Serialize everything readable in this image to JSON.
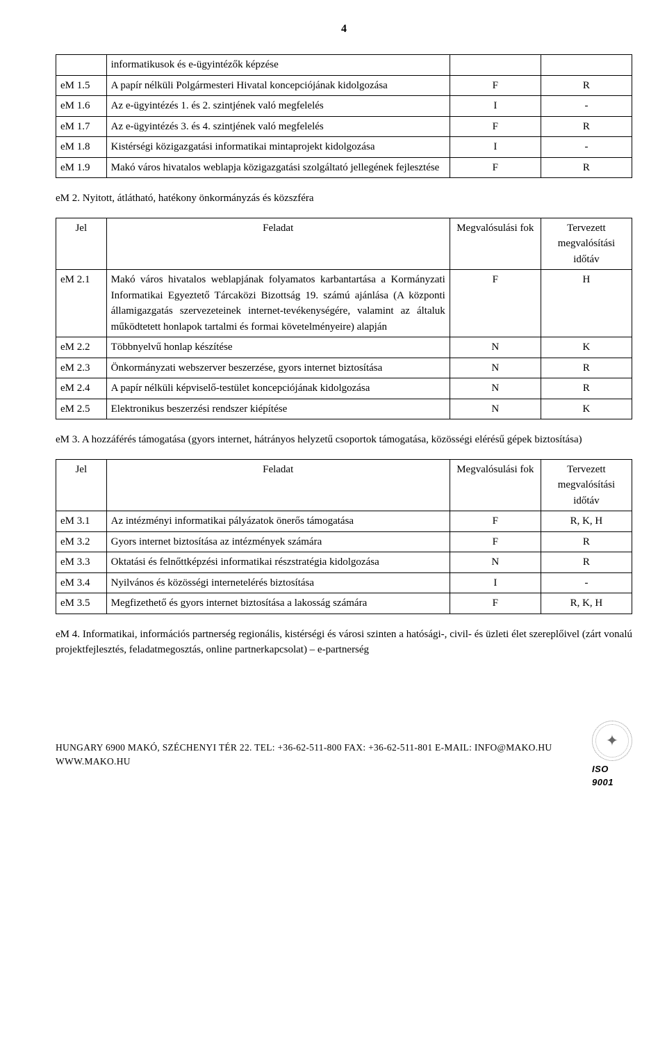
{
  "page_number": "4",
  "table1_rows": [
    {
      "id": "",
      "desc": "informatikusok és e-ügyintézők képzése",
      "c3": "",
      "c4": ""
    },
    {
      "id": "eM 1.5",
      "desc": "A papír nélküli Polgármesteri Hivatal koncepciójának kidolgozása",
      "c3": "F",
      "c4": "R"
    },
    {
      "id": "eM 1.6",
      "desc": "Az e-ügyintézés 1. és 2. szintjének való megfelelés",
      "c3": "I",
      "c4": "-"
    },
    {
      "id": "eM 1.7",
      "desc": "Az e-ügyintézés 3. és 4. szintjének való megfelelés",
      "c3": "F",
      "c4": "R"
    },
    {
      "id": "eM 1.8",
      "desc": "Kistérségi közigazgatási informatikai mintaprojekt kidolgozása",
      "c3": "I",
      "c4": "-"
    },
    {
      "id": "eM 1.9",
      "desc": "Makó város hivatalos weblapja közigazgatási szolgáltató jellegének fejlesztése",
      "c3": "F",
      "c4": "R"
    }
  ],
  "section2_title": "eM 2. Nyitott, átlátható, hatékony önkormányzás és közszféra",
  "table2_header": {
    "c1": "Jel",
    "c2": "Feladat",
    "c3": "Megvalósulási fok",
    "c4": "Tervezett megvalósítási időtáv"
  },
  "table2_rows": [
    {
      "id": "eM 2.1",
      "desc": "Makó város hivatalos weblapjának folyamatos karbantartása a Kormányzati Informatikai Egyeztető Tárcaközi Bizottság 19. számú ajánlása (A központi államigazgatás szervezeteinek internet-tevékenységére, valamint az általuk működtetett honlapok tartalmi és formai követelményeire) alapján",
      "c3": "F",
      "c4": "H"
    },
    {
      "id": "eM 2.2",
      "desc": "Többnyelvű honlap készítése",
      "c3": "N",
      "c4": "K"
    },
    {
      "id": "eM 2.3",
      "desc": "Önkormányzati webszerver beszerzése, gyors internet biztosítása",
      "c3": "N",
      "c4": "R"
    },
    {
      "id": "eM 2.4",
      "desc": "A papír nélküli képviselő-testület koncepciójának kidolgozása",
      "c3": "N",
      "c4": "R"
    },
    {
      "id": "eM 2.5",
      "desc": "Elektronikus beszerzési rendszer kiépítése",
      "c3": "N",
      "c4": "K"
    }
  ],
  "section3_title": "eM 3. A hozzáférés támogatása (gyors internet, hátrányos helyzetű csoportok támogatása, közösségi elérésű gépek biztosítása)",
  "table3_header": {
    "c1": "Jel",
    "c2": "Feladat",
    "c3": "Megvalósulási fok",
    "c4": "Tervezett megvalósítási időtáv"
  },
  "table3_rows": [
    {
      "id": "eM 3.1",
      "desc": "Az intézményi informatikai pályázatok önerős támogatása",
      "c3": "F",
      "c4": "R, K, H"
    },
    {
      "id": "eM 3.2",
      "desc": "Gyors internet biztosítása az intézmények számára",
      "c3": "F",
      "c4": "R"
    },
    {
      "id": "eM 3.3",
      "desc": "Oktatási és felnőttképzési informatikai részstratégia kidolgozása",
      "c3": "N",
      "c4": "R"
    },
    {
      "id": "eM 3.4",
      "desc": "Nyilvános és közösségi internetelérés biztosítása",
      "c3": "I",
      "c4": "-"
    },
    {
      "id": "eM 3.5",
      "desc": "Megfizethető és gyors internet biztosítása a lakosság számára",
      "c3": "F",
      "c4": "R, K, H"
    }
  ],
  "section4_title": "eM 4. Informatikai, információs partnerség regionális, kistérségi és városi szinten a hatósági-, civil- és üzleti élet szereplőivel (zárt vonalú projektfejlesztés, feladatmegosztás, online partnerkapcsolat) – e-partnerség",
  "footer_text": "HUNGARY 6900 MAKÓ, SZÉCHENYI TÉR 22.  TEL: +36-62-511-800 FAX: +36-62-511-801 E-MAIL: INFO@MAKO.HU WWW.MAKO.HU",
  "iso_label": "ISO 9001"
}
